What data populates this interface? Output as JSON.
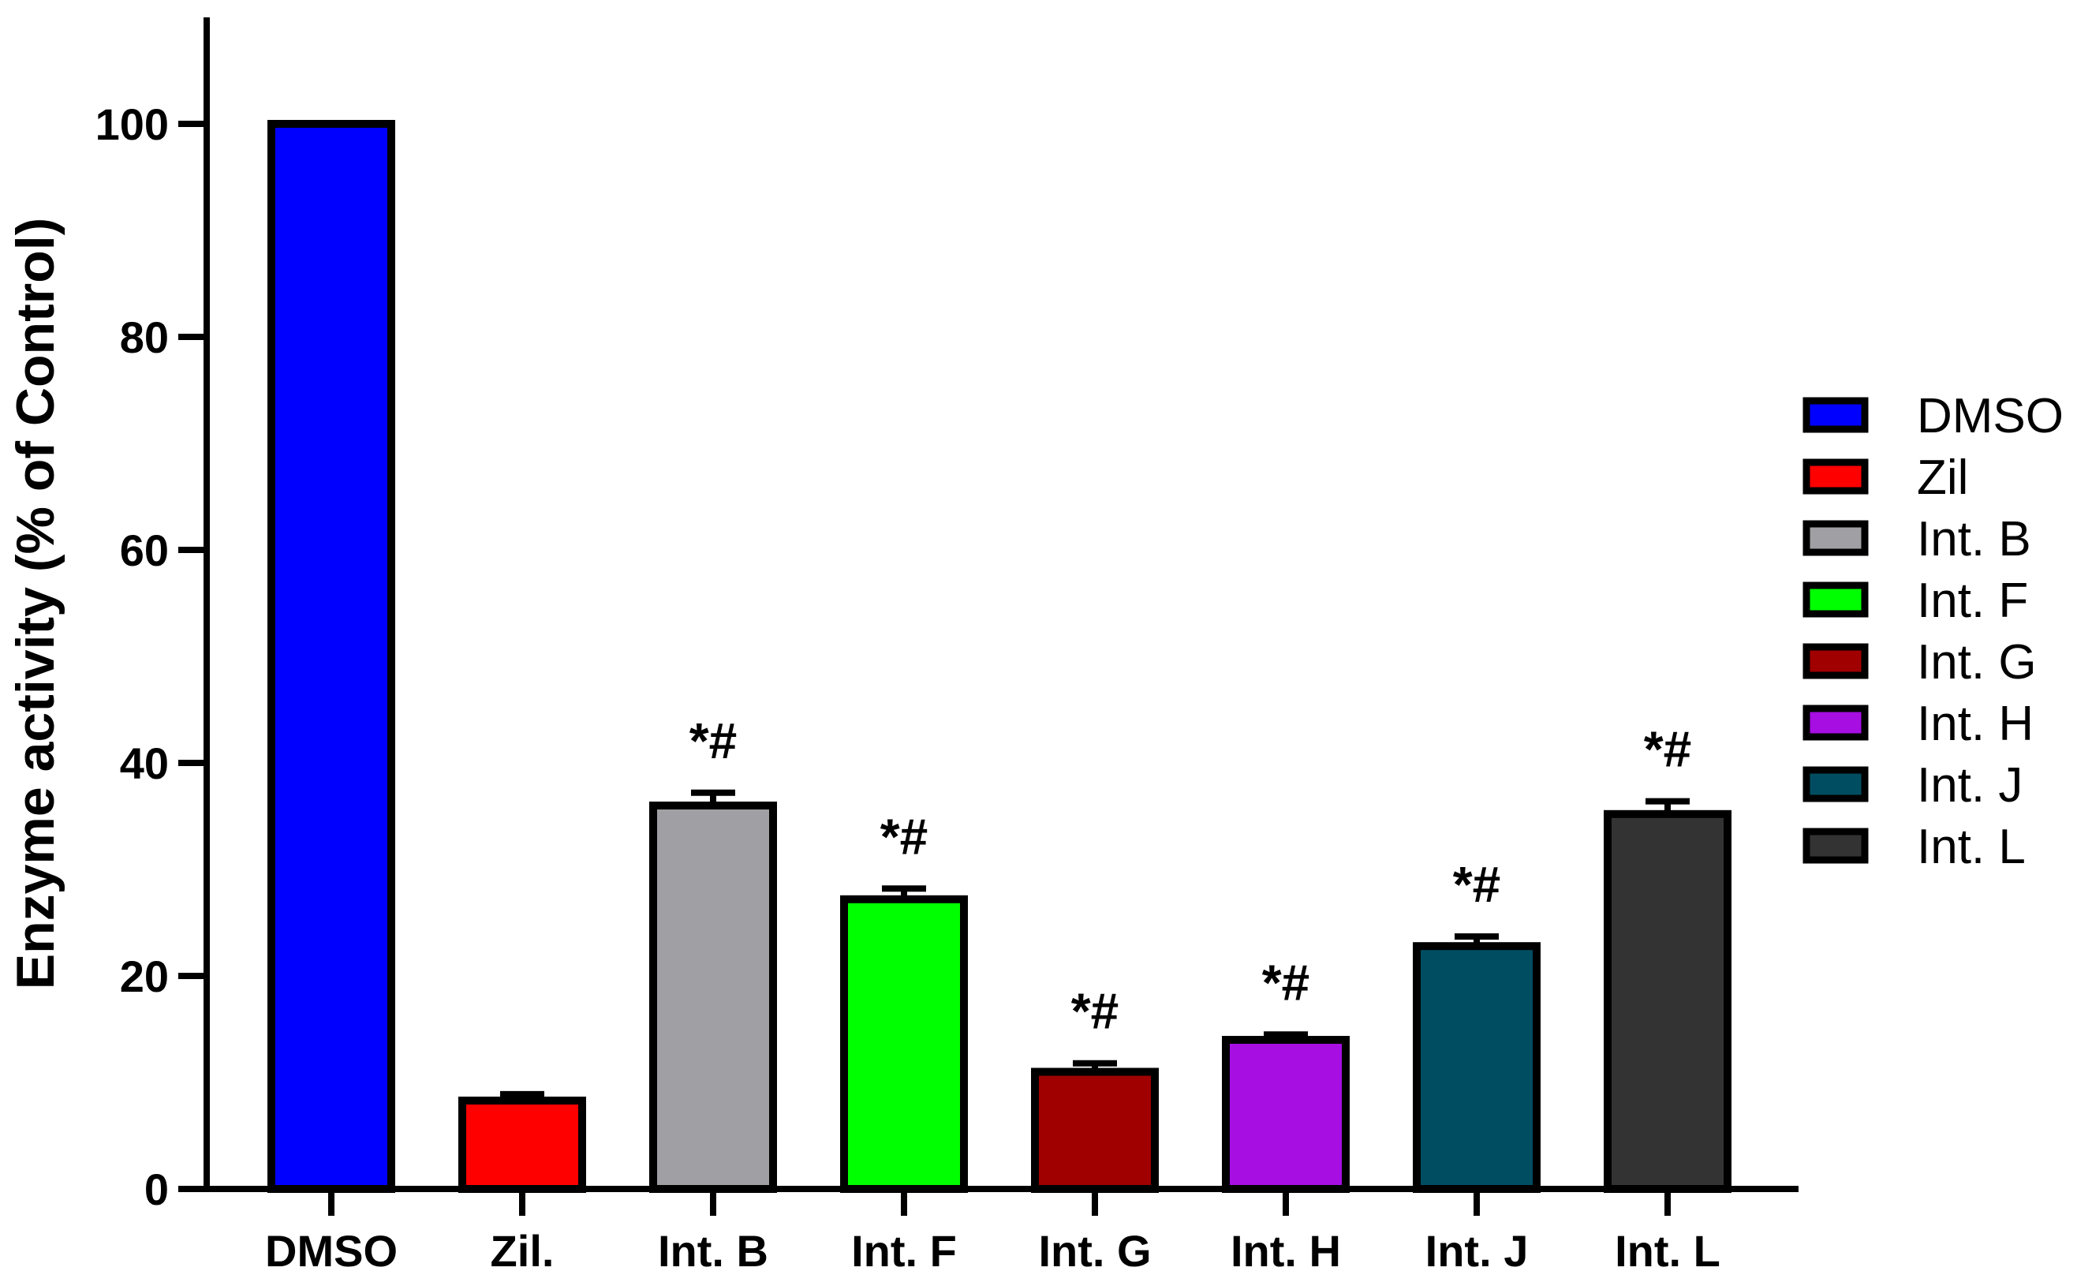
{
  "chart_data": {
    "type": "bar",
    "title": "",
    "xlabel": "",
    "ylabel": "Enzyme activity (% of Control)",
    "ylim": [
      0,
      110
    ],
    "yticks": [
      0,
      20,
      40,
      60,
      80,
      100
    ],
    "grid": false,
    "legend_position": "right",
    "bars": [
      {
        "category": "DMSO",
        "value": 100,
        "error": 0,
        "annotation": "",
        "color": "#0000ff"
      },
      {
        "category": "Zil.",
        "value": 8.3,
        "error": 0.6,
        "annotation": "",
        "color": "#ff0000"
      },
      {
        "category": "Int. B",
        "value": 36,
        "error": 1.2,
        "annotation": "*#",
        "color": "#a0a0a4"
      },
      {
        "category": "Int. F",
        "value": 27.2,
        "error": 1.0,
        "annotation": "*#",
        "color": "#00ff00"
      },
      {
        "category": "Int. G",
        "value": 11,
        "error": 0.8,
        "annotation": "*#",
        "color": "#a00000"
      },
      {
        "category": "Int. H",
        "value": 14,
        "error": 0.5,
        "annotation": "*#",
        "color": "#a60ee2"
      },
      {
        "category": "Int. J",
        "value": 22.8,
        "error": 0.9,
        "annotation": "*#",
        "color": "#004d61"
      },
      {
        "category": "Int. L",
        "value": 35.2,
        "error": 1.2,
        "annotation": "*#",
        "color": "#333333"
      }
    ],
    "legend": [
      {
        "label": "DMSO",
        "color": "#0000ff"
      },
      {
        "label": "Zil",
        "color": "#ff0000"
      },
      {
        "label": "Int. B",
        "color": "#a0a0a4"
      },
      {
        "label": "Int. F",
        "color": "#00ff00"
      },
      {
        "label": "Int. G",
        "color": "#a00000"
      },
      {
        "label": "Int. H",
        "color": "#a60ee2"
      },
      {
        "label": "Int. J",
        "color": "#004d61"
      },
      {
        "label": "Int. L",
        "color": "#333333"
      }
    ]
  }
}
